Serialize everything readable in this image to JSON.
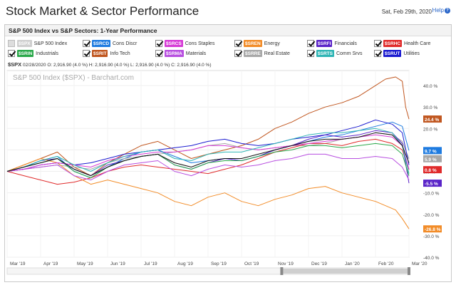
{
  "header": {
    "title": "Stock Market & Sector Performance",
    "date": "Sat, Feb 29th, 2020",
    "help_label": "Help"
  },
  "panel": {
    "title": "S&P 500 Index vs S&P Sectors: 1-Year Performance"
  },
  "legend": [
    {
      "symbol": "$SPX",
      "name": "S&P 500 Index",
      "color": "#cfcfcf",
      "checked": false
    },
    {
      "symbol": "$SRCD",
      "name": "Cons Discr",
      "color": "#1e7be0",
      "checked": true
    },
    {
      "symbol": "$SRCS",
      "name": "Cons Staples",
      "color": "#d63bd6",
      "checked": true
    },
    {
      "symbol": "$SREN",
      "name": "Energy",
      "color": "#f28c28",
      "checked": true
    },
    {
      "symbol": "$SRFI",
      "name": "Financials",
      "color": "#5a24c8",
      "checked": true
    },
    {
      "symbol": "$SRHC",
      "name": "Health Care",
      "color": "#e02b2b",
      "checked": true
    },
    {
      "symbol": "$SRIN",
      "name": "Industrials",
      "color": "#2aa84a",
      "checked": true
    },
    {
      "symbol": "$SRIT",
      "name": "Info Tech",
      "color": "#c0561f",
      "checked": true
    },
    {
      "symbol": "$SRMA",
      "name": "Materials",
      "color": "#b84fe0",
      "checked": true
    },
    {
      "symbol": "$SRRE",
      "name": "Real Estate",
      "color": "#a8a8a8",
      "checked": true
    },
    {
      "symbol": "$SRTS",
      "name": "Comm Srvs",
      "color": "#2fb5b5",
      "checked": true
    },
    {
      "symbol": "$SRUT",
      "name": "Utilities",
      "color": "#1b1bd0",
      "checked": true
    }
  ],
  "quote": {
    "symbol": "$SPX",
    "text": "02/28/2020 O: 2,916.90 (4.0 %) H: 2,916.90 (4.0 %) L: 2,916.90 (4.0 %) C: 2,916.90 (4.0 %)"
  },
  "chart_data": {
    "type": "line",
    "watermark": "S&P 500 Index ($SPX) - Barchart.com",
    "ylim": [
      -40,
      47
    ],
    "yticks": [
      40,
      30,
      20,
      10,
      0,
      -10,
      -20,
      -30,
      -40
    ],
    "ytick_labels": [
      "40.0 %",
      "30.0 %",
      "20.0 %",
      "10.0 %",
      "0.0 %",
      "-10.0 %",
      "-20.0 %",
      "-30.0 %",
      "-40.0 %"
    ],
    "x_labels": [
      "Mar '19",
      "Apr '19",
      "May '19",
      "Jun '19",
      "Jul '19",
      "Aug '19",
      "Sep '19",
      "Oct '19",
      "Nov '19",
      "Dec '19",
      "Jan '20",
      "Feb '20",
      "Mar '20"
    ],
    "months_x": [
      0,
      1,
      2,
      3,
      4,
      5,
      6,
      7,
      8,
      9,
      10,
      11,
      12
    ],
    "end_labels": [
      {
        "text": "24.4 %",
        "value": 24.4,
        "color": "#c0561f"
      },
      {
        "text": "9.7 %",
        "value": 9.7,
        "color": "#1e7be0"
      },
      {
        "text": "5.9 %",
        "value": 5.9,
        "color": "#a8a8a8"
      },
      {
        "text": "0.8 %",
        "value": 0.8,
        "color": "#e02b2b"
      },
      {
        "text": "-5.5 %",
        "value": -5.5,
        "color": "#5a24c8"
      },
      {
        "text": "-26.8 %",
        "value": -26.8,
        "color": "#f28c28"
      }
    ],
    "series": [
      {
        "name": "Info Tech",
        "color": "#c0561f",
        "x": [
          0,
          0.5,
          1,
          1.5,
          2,
          2.5,
          3,
          3.5,
          4,
          4.5,
          5,
          5.5,
          6,
          6.5,
          7,
          7.5,
          8,
          8.5,
          9,
          9.5,
          10,
          10.5,
          11,
          11.3,
          11.6,
          11.8,
          11.9,
          12
        ],
        "y": [
          0,
          3,
          6,
          9,
          2,
          -2,
          4,
          8,
          12,
          14,
          10,
          6,
          8,
          10,
          12,
          15,
          20,
          23,
          27,
          30,
          32,
          35,
          40,
          43,
          44,
          42,
          30,
          24.4
        ]
      },
      {
        "name": "Cons Discr",
        "color": "#1e7be0",
        "x": [
          0,
          0.5,
          1,
          1.5,
          2,
          2.5,
          3,
          3.5,
          4,
          4.5,
          5,
          5.5,
          6,
          6.5,
          7,
          7.5,
          8,
          8.5,
          9,
          9.5,
          10,
          10.5,
          11,
          11.5,
          11.8,
          12
        ],
        "y": [
          0,
          2,
          5,
          7,
          0,
          -3,
          2,
          6,
          9,
          10,
          7,
          4,
          5,
          6,
          5,
          7,
          10,
          12,
          14,
          16,
          17,
          19,
          21,
          23,
          21,
          9.7
        ]
      },
      {
        "name": "Real Estate",
        "color": "#a8a8a8",
        "x": [
          0,
          0.5,
          1,
          1.5,
          2,
          2.5,
          3,
          3.5,
          4,
          4.5,
          5,
          5.5,
          6,
          6.5,
          7,
          7.5,
          8,
          8.5,
          9,
          9.5,
          10,
          10.5,
          11,
          11.5,
          11.8,
          12
        ],
        "y": [
          0,
          1,
          2,
          3,
          2,
          1,
          4,
          6,
          7,
          8,
          9,
          10,
          12,
          13,
          11,
          10,
          11,
          12,
          12,
          13,
          15,
          16,
          18,
          17,
          14,
          5.9
        ]
      },
      {
        "name": "Health Care",
        "color": "#e02b2b",
        "x": [
          0,
          0.5,
          1,
          1.5,
          2,
          2.5,
          3,
          3.5,
          4,
          4.5,
          5,
          5.5,
          6,
          6.5,
          7,
          7.5,
          8,
          8.5,
          9,
          9.5,
          10,
          10.5,
          11,
          11.5,
          11.8,
          12
        ],
        "y": [
          0,
          -2,
          -4,
          -6,
          -5,
          -3,
          0,
          2,
          3,
          2,
          1,
          0,
          -1,
          1,
          3,
          6,
          9,
          11,
          13,
          13,
          12,
          14,
          15,
          13,
          10,
          0.8
        ]
      },
      {
        "name": "Financials",
        "color": "#5a24c8",
        "x": [
          0,
          0.5,
          1,
          1.5,
          2,
          2.5,
          3,
          3.5,
          4,
          4.5,
          5,
          5.5,
          6,
          6.5,
          7,
          7.5,
          8,
          8.5,
          9,
          9.5,
          10,
          10.5,
          11,
          11.5,
          11.8,
          12
        ],
        "y": [
          0,
          2,
          5,
          6,
          1,
          -2,
          3,
          5,
          7,
          8,
          3,
          1,
          4,
          6,
          5,
          7,
          10,
          12,
          15,
          17,
          16,
          17,
          19,
          18,
          13,
          -5.5
        ]
      },
      {
        "name": "Energy",
        "color": "#f28c28",
        "x": [
          0,
          0.5,
          1,
          1.5,
          2,
          2.5,
          3,
          3.5,
          4,
          4.5,
          5,
          5.5,
          6,
          6.5,
          7,
          7.5,
          8,
          8.5,
          9,
          9.5,
          10,
          10.5,
          11,
          11.3,
          11.6,
          11.8,
          12
        ],
        "y": [
          0,
          3,
          6,
          4,
          -2,
          -6,
          -4,
          -6,
          -8,
          -10,
          -14,
          -16,
          -12,
          -10,
          -14,
          -16,
          -13,
          -11,
          -8,
          -7,
          -10,
          -12,
          -14,
          -16,
          -18,
          -22,
          -26.8
        ]
      },
      {
        "name": "Industrials",
        "color": "#2aa84a",
        "x": [
          0,
          0.5,
          1,
          1.5,
          2,
          2.5,
          3,
          3.5,
          4,
          4.5,
          5,
          5.5,
          6,
          6.5,
          7,
          7.5,
          8,
          8.5,
          9,
          9.5,
          10,
          10.5,
          11,
          11.5,
          11.8,
          12
        ],
        "y": [
          0,
          2,
          4,
          6,
          0,
          -3,
          2,
          5,
          7,
          8,
          3,
          1,
          4,
          5,
          5,
          7,
          9,
          10,
          12,
          12,
          11,
          12,
          13,
          12,
          8,
          -2
        ]
      },
      {
        "name": "Materials",
        "color": "#b84fe0",
        "x": [
          0,
          0.5,
          1,
          1.5,
          2,
          2.5,
          3,
          3.5,
          4,
          4.5,
          5,
          5.5,
          6,
          6.5,
          7,
          7.5,
          8,
          8.5,
          9,
          9.5,
          10,
          10.5,
          11,
          11.5,
          11.8,
          12
        ],
        "y": [
          0,
          1,
          2,
          3,
          -2,
          -4,
          0,
          3,
          4,
          5,
          0,
          -2,
          1,
          3,
          2,
          3,
          5,
          6,
          8,
          8,
          6,
          6,
          7,
          6,
          2,
          -4
        ]
      },
      {
        "name": "Utilities",
        "color": "#1b1bd0",
        "x": [
          0,
          0.5,
          1,
          1.5,
          2,
          2.5,
          3,
          3.5,
          4,
          4.5,
          5,
          5.5,
          6,
          6.5,
          7,
          7.5,
          8,
          8.5,
          9,
          9.5,
          10,
          10.5,
          11,
          11.5,
          11.8,
          12
        ],
        "y": [
          0,
          1,
          3,
          4,
          3,
          4,
          6,
          8,
          9,
          10,
          11,
          12,
          14,
          15,
          13,
          12,
          13,
          15,
          16,
          17,
          19,
          21,
          24,
          22,
          18,
          3
        ]
      },
      {
        "name": "Cons Staples",
        "color": "#d63bd6",
        "x": [
          0,
          0.5,
          1,
          1.5,
          2,
          2.5,
          3,
          3.5,
          4,
          4.5,
          5,
          5.5,
          6,
          6.5,
          7,
          7.5,
          8,
          8.5,
          9,
          9.5,
          10,
          10.5,
          11,
          11.5,
          11.8,
          12
        ],
        "y": [
          0,
          1,
          3,
          4,
          3,
          2,
          5,
          7,
          8,
          9,
          9,
          10,
          12,
          12,
          11,
          10,
          11,
          12,
          13,
          14,
          15,
          16,
          17,
          16,
          12,
          1
        ]
      },
      {
        "name": "Comm Srvs",
        "color": "#2fb5b5",
        "x": [
          0,
          0.5,
          1,
          1.5,
          2,
          2.5,
          3,
          3.5,
          4,
          4.5,
          5,
          5.5,
          6,
          6.5,
          7,
          7.5,
          8,
          8.5,
          9,
          9.5,
          10,
          10.5,
          11,
          11.5,
          11.8,
          12
        ],
        "y": [
          0,
          2,
          5,
          7,
          3,
          0,
          4,
          7,
          9,
          10,
          6,
          5,
          8,
          9,
          9,
          11,
          13,
          15,
          17,
          18,
          18,
          19,
          20,
          18,
          12,
          -1
        ]
      },
      {
        "name": "S&P 500 Index",
        "color": "#111111",
        "x": [
          0,
          0.5,
          1,
          1.5,
          2,
          2.5,
          3,
          3.5,
          4,
          4.5,
          5,
          5.5,
          6,
          6.5,
          7,
          7.5,
          8,
          8.5,
          9,
          9.5,
          10,
          10.5,
          11,
          11.5,
          11.8,
          12
        ],
        "y": [
          0,
          2,
          4,
          6,
          1,
          -2,
          2,
          5,
          7,
          8,
          4,
          2,
          5,
          6,
          6,
          8,
          10,
          12,
          14,
          15,
          15,
          16,
          18,
          17,
          12,
          4
        ]
      }
    ]
  }
}
